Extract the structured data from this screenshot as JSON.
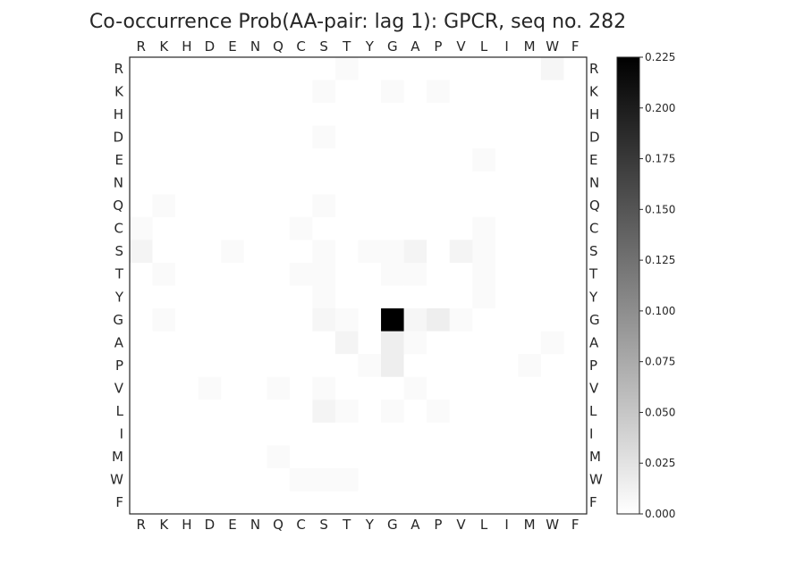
{
  "chart_data": {
    "type": "heatmap",
    "title": "Co-occurrence Prob(AA-pair: lag 1):  GPCR, seq no. 282",
    "x_labels": [
      "R",
      "K",
      "H",
      "D",
      "E",
      "N",
      "Q",
      "C",
      "S",
      "T",
      "Y",
      "G",
      "A",
      "P",
      "V",
      "L",
      "I",
      "M",
      "W",
      "F"
    ],
    "y_labels": [
      "R",
      "K",
      "H",
      "D",
      "E",
      "N",
      "Q",
      "C",
      "S",
      "T",
      "Y",
      "G",
      "A",
      "P",
      "V",
      "L",
      "I",
      "M",
      "W",
      "F"
    ],
    "colormap": "greys",
    "color_low": "#ffffff",
    "color_high": "#000000",
    "vmin": 0.0,
    "vmax": 0.225,
    "colorbar_ticks": [
      "0.000",
      "0.025",
      "0.050",
      "0.075",
      "0.100",
      "0.125",
      "0.150",
      "0.175",
      "0.200",
      "0.225"
    ],
    "grid": false,
    "values": [
      [
        0,
        0,
        0,
        0,
        0,
        0,
        0,
        0,
        0,
        0.004,
        0,
        0,
        0,
        0,
        0,
        0,
        0,
        0,
        0.008,
        0
      ],
      [
        0,
        0,
        0,
        0,
        0,
        0,
        0,
        0,
        0.004,
        0,
        0,
        0.004,
        0,
        0.004,
        0,
        0,
        0,
        0,
        0,
        0
      ],
      [
        0,
        0,
        0,
        0,
        0,
        0,
        0,
        0,
        0,
        0,
        0,
        0,
        0,
        0,
        0,
        0,
        0,
        0,
        0,
        0
      ],
      [
        0,
        0,
        0,
        0,
        0,
        0,
        0,
        0,
        0.004,
        0,
        0,
        0,
        0,
        0,
        0,
        0,
        0,
        0,
        0,
        0
      ],
      [
        0,
        0,
        0,
        0,
        0,
        0,
        0,
        0,
        0,
        0,
        0,
        0,
        0,
        0,
        0,
        0.004,
        0,
        0,
        0,
        0
      ],
      [
        0,
        0,
        0,
        0,
        0,
        0,
        0,
        0,
        0,
        0,
        0,
        0,
        0,
        0,
        0,
        0,
        0,
        0,
        0,
        0
      ],
      [
        0,
        0.004,
        0,
        0,
        0,
        0,
        0,
        0,
        0.004,
        0,
        0,
        0,
        0,
        0,
        0,
        0,
        0,
        0,
        0,
        0
      ],
      [
        0.004,
        0,
        0,
        0,
        0,
        0,
        0,
        0.004,
        0,
        0,
        0,
        0,
        0,
        0,
        0,
        0.004,
        0,
        0,
        0,
        0
      ],
      [
        0.01,
        0,
        0,
        0,
        0.004,
        0,
        0,
        0,
        0.004,
        0,
        0.004,
        0.004,
        0.01,
        0,
        0.01,
        0.004,
        0,
        0,
        0,
        0
      ],
      [
        0,
        0.004,
        0,
        0,
        0,
        0,
        0,
        0.004,
        0.004,
        0,
        0,
        0.004,
        0.004,
        0,
        0,
        0.004,
        0,
        0,
        0,
        0
      ],
      [
        0,
        0,
        0,
        0,
        0,
        0,
        0,
        0,
        0.004,
        0,
        0,
        0,
        0,
        0,
        0,
        0.004,
        0,
        0,
        0,
        0
      ],
      [
        0,
        0.004,
        0,
        0,
        0,
        0,
        0,
        0,
        0.008,
        0.004,
        0,
        0.225,
        0.008,
        0.015,
        0.004,
        0,
        0,
        0,
        0,
        0
      ],
      [
        0,
        0,
        0,
        0,
        0,
        0,
        0,
        0,
        0,
        0.01,
        0,
        0.015,
        0.004,
        0,
        0,
        0,
        0,
        0,
        0.004,
        0
      ],
      [
        0,
        0,
        0,
        0,
        0,
        0,
        0,
        0,
        0,
        0,
        0.004,
        0.015,
        0,
        0,
        0,
        0,
        0,
        0.004,
        0,
        0
      ],
      [
        0,
        0,
        0,
        0.004,
        0,
        0,
        0.004,
        0,
        0.004,
        0,
        0,
        0,
        0.004,
        0,
        0,
        0,
        0,
        0,
        0,
        0
      ],
      [
        0,
        0,
        0,
        0,
        0,
        0,
        0,
        0,
        0.01,
        0.004,
        0,
        0.004,
        0,
        0.004,
        0,
        0,
        0,
        0,
        0,
        0
      ],
      [
        0,
        0,
        0,
        0,
        0,
        0,
        0,
        0,
        0,
        0,
        0,
        0,
        0,
        0,
        0,
        0,
        0,
        0,
        0,
        0
      ],
      [
        0,
        0,
        0,
        0,
        0,
        0,
        0.004,
        0,
        0,
        0,
        0,
        0,
        0,
        0,
        0,
        0,
        0,
        0,
        0,
        0
      ],
      [
        0,
        0,
        0,
        0,
        0,
        0,
        0,
        0.004,
        0.004,
        0.004,
        0,
        0,
        0,
        0,
        0,
        0,
        0,
        0,
        0,
        0
      ],
      [
        0,
        0,
        0,
        0,
        0,
        0,
        0,
        0,
        0,
        0,
        0,
        0,
        0,
        0,
        0,
        0,
        0,
        0,
        0,
        0
      ]
    ]
  }
}
